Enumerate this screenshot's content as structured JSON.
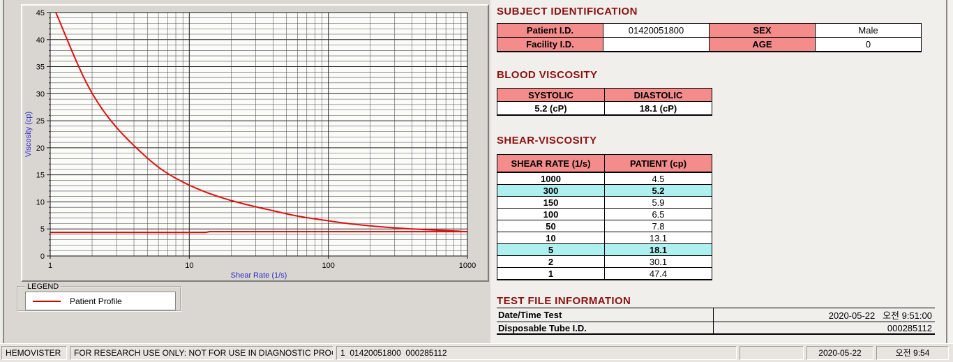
{
  "colors": {
    "title_maroon": "#8B1111",
    "header_pink": "#F48C8C",
    "highlight_cyan": "#AEF0F0",
    "curve_red": "#E01010",
    "axis_blue": "#2B2BC4"
  },
  "sections": {
    "subject_title": "SUBJECT IDENTIFICATION",
    "blood_title": "BLOOD VISCOSITY",
    "shear_title": "SHEAR-VISCOSITY",
    "test_title": "TEST FILE INFORMATION"
  },
  "subject": {
    "rows": [
      {
        "c1_label": "Patient I.D.",
        "c1_value": "01420051800",
        "c2_label": "SEX",
        "c2_value": "Male"
      },
      {
        "c1_label": "Facility I.D.",
        "c1_value": "",
        "c2_label": "AGE",
        "c2_value": "0"
      }
    ]
  },
  "blood": {
    "headers": [
      "SYSTOLIC",
      "DIASTOLIC"
    ],
    "values": [
      "5.2 (cP)",
      "18.1 (cP)"
    ]
  },
  "shear": {
    "headers": [
      "SHEAR RATE (1/s)",
      "PATIENT (cp)"
    ],
    "rows": [
      {
        "rate": "1000",
        "value": "4.5",
        "highlight": false
      },
      {
        "rate": "300",
        "value": "5.2",
        "highlight": true
      },
      {
        "rate": "150",
        "value": "5.9",
        "highlight": false
      },
      {
        "rate": "100",
        "value": "6.5",
        "highlight": false
      },
      {
        "rate": "50",
        "value": "7.8",
        "highlight": false
      },
      {
        "rate": "10",
        "value": "13.1",
        "highlight": false
      },
      {
        "rate": "5",
        "value": "18.1",
        "highlight": true
      },
      {
        "rate": "2",
        "value": "30.1",
        "highlight": false
      },
      {
        "rate": "1",
        "value": "47.4",
        "highlight": false
      }
    ]
  },
  "test_file": {
    "rows": [
      {
        "label": "Date/Time Test",
        "value": "2020-05-22   오전 9:51:00"
      },
      {
        "label": "Disposable Tube I.D.",
        "value": "000285112"
      }
    ]
  },
  "legend": {
    "box_label": "LEGEND",
    "series_label": "Patient Profile"
  },
  "status_bar": {
    "panels": [
      {
        "text": "HEMOVISTER"
      },
      {
        "text": "FOR RESEARCH USE ONLY: NOT FOR USE IN DIAGNOSTIC PROCEDURES"
      },
      {
        "text": "1  01420051800  000285112"
      },
      {
        "text": ""
      },
      {
        "text": "2020-05-22"
      },
      {
        "text": "오전 9:54"
      }
    ]
  },
  "chart_data": {
    "type": "line",
    "x_scale": "log",
    "xlim": [
      1,
      1000
    ],
    "ylim": [
      0,
      45
    ],
    "x_ticks": [
      1,
      10,
      100,
      1000
    ],
    "y_tick_step": 5,
    "y_minor_step": 1,
    "grid": true,
    "xlabel": "Shear Rate (1/s)",
    "ylabel": "Viscosity (cp)",
    "legend_position": "below-left",
    "series": [
      {
        "name": "Patient Profile",
        "color": "#E01010",
        "points": [
          [
            1,
            47.4
          ],
          [
            2,
            30.1
          ],
          [
            5,
            18.1
          ],
          [
            10,
            13.1
          ],
          [
            50,
            7.8
          ],
          [
            100,
            6.5
          ],
          [
            150,
            5.9
          ],
          [
            300,
            5.2
          ],
          [
            1000,
            4.5
          ]
        ]
      }
    ],
    "baseline": {
      "name": "high-shear-reference-line",
      "color": "#CC0A0A",
      "points": [
        [
          1,
          4.35
        ],
        [
          13,
          4.35
        ],
        [
          14,
          4.5
        ],
        [
          1000,
          4.5
        ]
      ]
    }
  }
}
